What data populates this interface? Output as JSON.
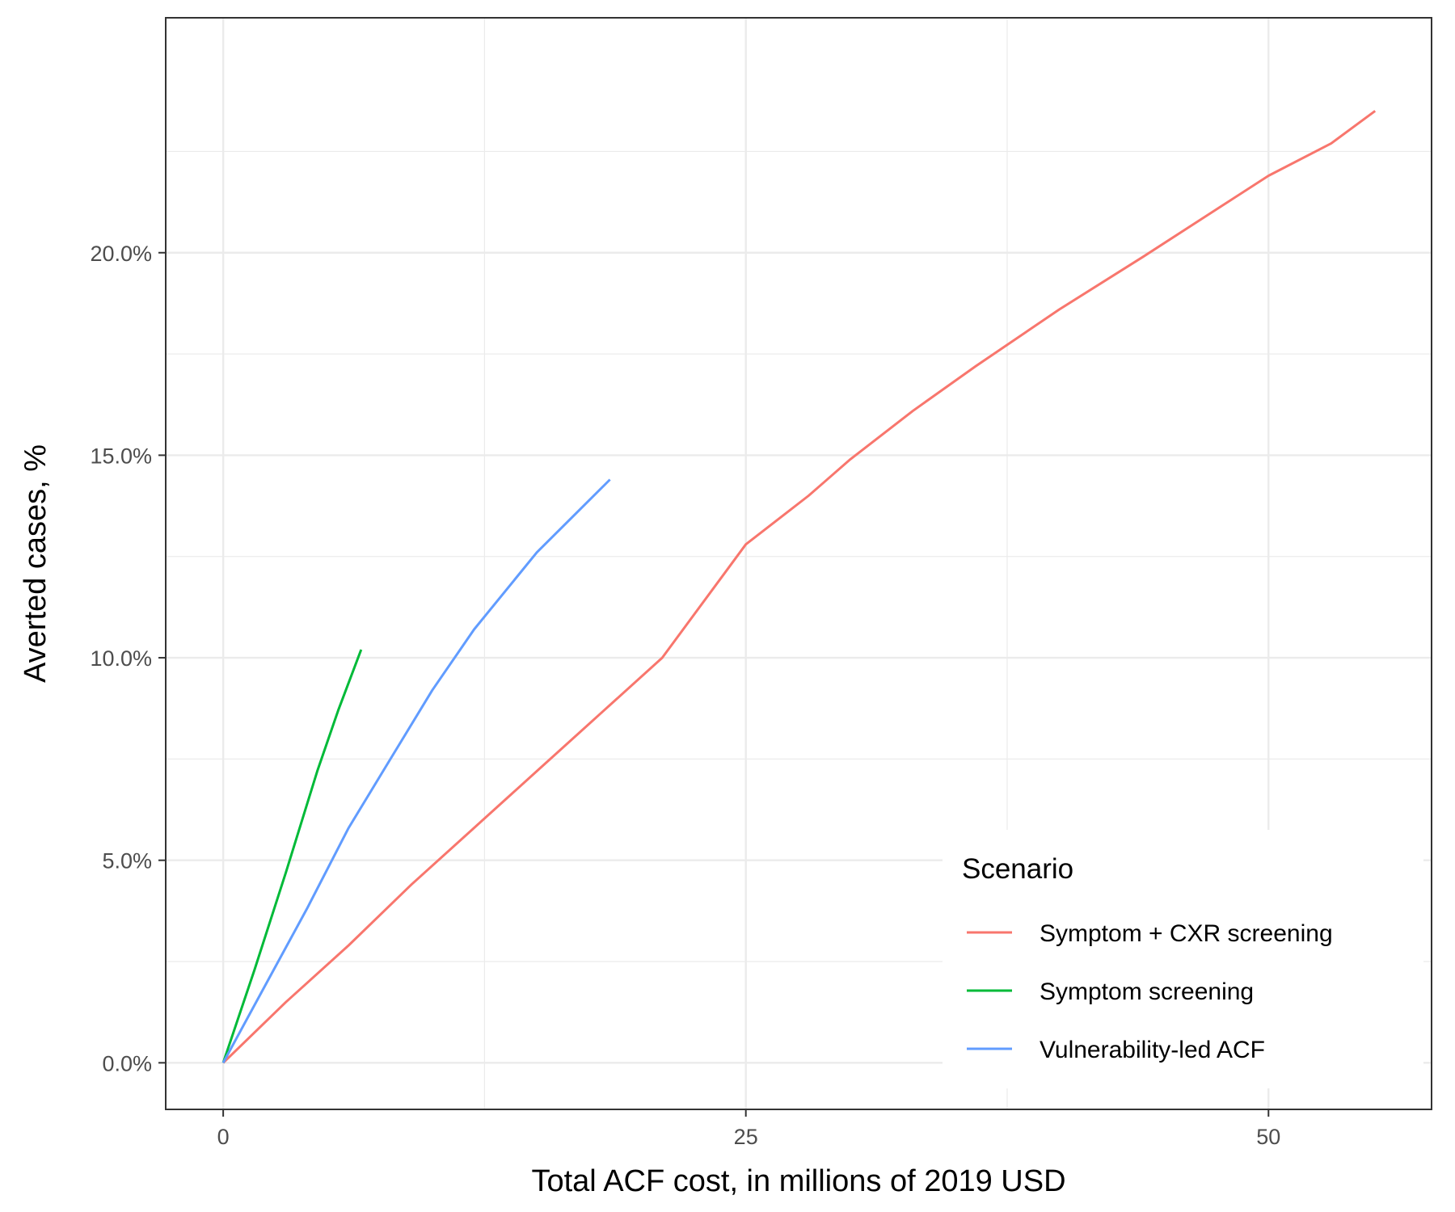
{
  "chart_data": {
    "type": "line",
    "title": "",
    "xlabel": "Total ACF cost, in millions of 2019 USD",
    "ylabel": "Averted cases, %",
    "xlim": [
      -2.75,
      57.8
    ],
    "ylim": [
      -1.15,
      25.8
    ],
    "x_ticks": [
      0,
      25,
      50
    ],
    "x_tick_labels": [
      "0",
      "25",
      "50"
    ],
    "y_ticks": [
      0,
      5,
      10,
      15,
      20
    ],
    "y_tick_labels": [
      "0.0%",
      "5.0%",
      "10.0%",
      "15.0%",
      "20.0%"
    ],
    "grid": true,
    "legend": {
      "title": "Scenario",
      "position": "bottom-right"
    },
    "series": [
      {
        "name": "Symptom + CXR screening",
        "color": "#F8766D",
        "points": [
          [
            0,
            0
          ],
          [
            3,
            1.5
          ],
          [
            6,
            2.9
          ],
          [
            9,
            4.4
          ],
          [
            12,
            5.8
          ],
          [
            15,
            7.2
          ],
          [
            18,
            8.6
          ],
          [
            21,
            10.0
          ],
          [
            25,
            12.8
          ],
          [
            28,
            14.0
          ],
          [
            30,
            14.9
          ],
          [
            33,
            16.1
          ],
          [
            36,
            17.2
          ],
          [
            40,
            18.6
          ],
          [
            44,
            19.9
          ],
          [
            47,
            20.9
          ],
          [
            50,
            21.9
          ],
          [
            53,
            22.7
          ],
          [
            55.1,
            23.5
          ]
        ]
      },
      {
        "name": "Symptom screening",
        "color": "#00BA38",
        "points": [
          [
            0,
            0
          ],
          [
            1.5,
            2.3
          ],
          [
            3,
            4.7
          ],
          [
            4.5,
            7.2
          ],
          [
            5.5,
            8.7
          ],
          [
            6.6,
            10.2
          ]
        ]
      },
      {
        "name": "Vulnerability-led ACF",
        "color": "#619CFF",
        "points": [
          [
            0,
            0
          ],
          [
            2,
            1.9
          ],
          [
            4,
            3.8
          ],
          [
            6,
            5.8
          ],
          [
            8,
            7.5
          ],
          [
            10,
            9.2
          ],
          [
            12,
            10.7
          ],
          [
            15,
            12.6
          ],
          [
            18.5,
            14.4
          ]
        ]
      }
    ]
  }
}
